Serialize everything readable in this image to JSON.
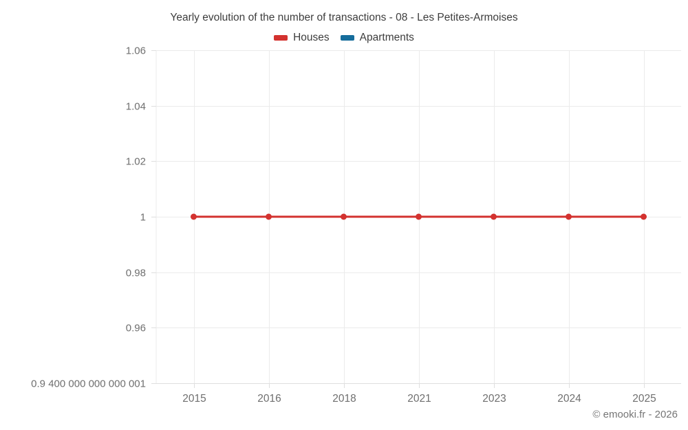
{
  "title": "Yearly evolution of the number of transactions - 08 - Les Petites-Armoises",
  "copyright": "© emooki.fr - 2026",
  "colors": {
    "houses": "#d3322f",
    "apartments": "#166d9c",
    "gridline": "#ebebeb",
    "axis_line": "#dedede",
    "title_text": "#3d3d3d",
    "tick_text": "#6f6f6f"
  },
  "legend": {
    "items": [
      {
        "label": "Houses"
      },
      {
        "label": "Apartments"
      }
    ]
  },
  "chart_data": {
    "type": "line",
    "title": "Yearly evolution of the number of transactions - 08 - Les Petites-Armoises",
    "categories": [
      "2015",
      "2016",
      "2018",
      "2021",
      "2023",
      "2024",
      "2025"
    ],
    "series": [
      {
        "name": "Houses",
        "color": "#d3322f",
        "values": [
          1,
          1,
          1,
          1,
          1,
          1,
          1
        ]
      },
      {
        "name": "Apartments",
        "color": "#166d9c",
        "values": []
      }
    ],
    "xlabel": "",
    "ylabel": "",
    "ylim": [
      0.94,
      1.06
    ],
    "grid": true,
    "legend_position": "top",
    "y_ticks": [
      {
        "value": 1.06,
        "label": "1.06"
      },
      {
        "value": 1.04,
        "label": "1.04"
      },
      {
        "value": 1.02,
        "label": "1.02"
      },
      {
        "value": 1.0,
        "label": "1"
      },
      {
        "value": 0.98,
        "label": "0.98"
      },
      {
        "value": 0.96,
        "label": "0.96"
      },
      {
        "value": 0.94,
        "label": "0.9 400 000 000 000 001"
      }
    ]
  }
}
